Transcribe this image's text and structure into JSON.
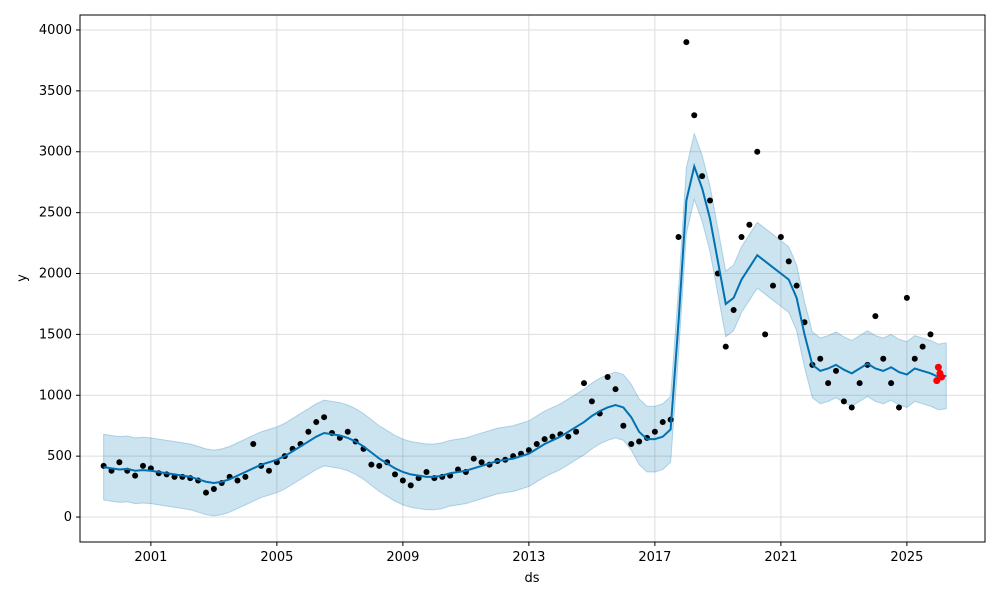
{
  "chart_data": {
    "type": "line",
    "xlabel": "ds",
    "ylabel": "y",
    "xlim": [
      1998.75,
      2027.48
    ],
    "ylim": [
      -205,
      4123
    ],
    "xticks": [
      2001,
      2005,
      2009,
      2013,
      2017,
      2021,
      2025
    ],
    "yticks": [
      0,
      500,
      1000,
      1500,
      2000,
      2500,
      3000,
      3500,
      4000
    ],
    "grid": true,
    "x": [
      1999.5,
      1999.75,
      2000,
      2000.25,
      2000.5,
      2000.75,
      2001,
      2001.25,
      2001.5,
      2001.75,
      2002,
      2002.25,
      2002.5,
      2002.75,
      2003,
      2003.25,
      2003.5,
      2003.75,
      2004,
      2004.25,
      2004.5,
      2004.75,
      2005,
      2005.25,
      2005.5,
      2005.75,
      2006,
      2006.25,
      2006.5,
      2006.75,
      2007,
      2007.25,
      2007.5,
      2007.75,
      2008,
      2008.25,
      2008.5,
      2008.75,
      2009,
      2009.25,
      2009.5,
      2009.75,
      2010,
      2010.25,
      2010.5,
      2010.75,
      2011,
      2011.25,
      2011.5,
      2011.75,
      2012,
      2012.25,
      2012.5,
      2012.75,
      2013,
      2013.25,
      2013.5,
      2013.75,
      2014,
      2014.25,
      2014.5,
      2014.75,
      2015,
      2015.25,
      2015.5,
      2015.75,
      2016,
      2016.25,
      2016.5,
      2016.75,
      2017,
      2017.25,
      2017.5,
      2017.75,
      2018,
      2018.25,
      2018.5,
      2018.75,
      2019,
      2019.25,
      2019.5,
      2019.75,
      2020,
      2020.25,
      2020.5,
      2020.75,
      2021,
      2021.25,
      2021.5,
      2021.75,
      2022,
      2022.25,
      2022.5,
      2022.75,
      2023,
      2023.25,
      2023.5,
      2023.75,
      2024,
      2024.25,
      2024.5,
      2024.75,
      2025,
      2025.25,
      2025.5,
      2025.75,
      2026,
      2026.25
    ],
    "forecast": {
      "color": "#0072b2",
      "values": [
        410,
        400,
        390,
        395,
        380,
        385,
        380,
        370,
        360,
        350,
        340,
        330,
        310,
        290,
        280,
        290,
        310,
        340,
        370,
        400,
        430,
        450,
        470,
        500,
        540,
        580,
        620,
        660,
        690,
        680,
        670,
        650,
        620,
        580,
        530,
        480,
        440,
        400,
        370,
        350,
        340,
        330,
        330,
        340,
        360,
        370,
        380,
        400,
        420,
        440,
        460,
        470,
        480,
        500,
        520,
        560,
        600,
        630,
        660,
        700,
        740,
        780,
        830,
        870,
        900,
        920,
        900,
        820,
        700,
        640,
        640,
        660,
        720,
        1600,
        2600,
        2880,
        2700,
        2450,
        2100,
        1750,
        1800,
        1950,
        2050,
        2150,
        2100,
        2050,
        2000,
        1950,
        1800,
        1500,
        1250,
        1200,
        1220,
        1250,
        1210,
        1180,
        1220,
        1260,
        1220,
        1200,
        1230,
        1190,
        1170,
        1220,
        1200,
        1180,
        1150,
        1160
      ]
    },
    "interval": {
      "color": "#0072b2",
      "lower": [
        140,
        130,
        120,
        125,
        110,
        115,
        110,
        100,
        90,
        80,
        70,
        60,
        40,
        20,
        10,
        20,
        40,
        70,
        100,
        130,
        160,
        180,
        200,
        230,
        270,
        310,
        350,
        390,
        420,
        410,
        400,
        380,
        350,
        310,
        260,
        210,
        170,
        130,
        100,
        80,
        70,
        60,
        60,
        70,
        90,
        100,
        110,
        130,
        150,
        170,
        190,
        200,
        210,
        230,
        250,
        290,
        330,
        360,
        390,
        430,
        470,
        510,
        560,
        600,
        630,
        650,
        630,
        550,
        430,
        370,
        370,
        390,
        450,
        1330,
        2330,
        2610,
        2430,
        2180,
        1830,
        1480,
        1530,
        1680,
        1780,
        1880,
        1830,
        1780,
        1730,
        1680,
        1530,
        1230,
        980,
        930,
        950,
        980,
        940,
        910,
        950,
        990,
        950,
        930,
        960,
        920,
        900,
        950,
        930,
        910,
        880,
        890
      ],
      "upper": [
        680,
        670,
        660,
        665,
        650,
        655,
        650,
        640,
        630,
        620,
        610,
        600,
        580,
        560,
        550,
        560,
        580,
        610,
        640,
        670,
        700,
        720,
        740,
        770,
        810,
        850,
        890,
        930,
        960,
        950,
        940,
        920,
        890,
        850,
        800,
        750,
        710,
        670,
        640,
        620,
        610,
        600,
        600,
        610,
        630,
        640,
        650,
        670,
        690,
        710,
        730,
        740,
        750,
        770,
        790,
        830,
        870,
        900,
        930,
        970,
        1010,
        1050,
        1100,
        1140,
        1170,
        1190,
        1170,
        1090,
        970,
        910,
        910,
        930,
        990,
        1870,
        2870,
        3150,
        2970,
        2720,
        2370,
        2020,
        2070,
        2220,
        2320,
        2420,
        2370,
        2320,
        2270,
        2220,
        2070,
        1770,
        1520,
        1470,
        1490,
        1520,
        1480,
        1450,
        1490,
        1530,
        1490,
        1470,
        1500,
        1460,
        1440,
        1490,
        1470,
        1450,
        1420,
        1430
      ]
    },
    "observed": {
      "color": "#000000",
      "x": [
        1999.5,
        1999.75,
        2000,
        2000.25,
        2000.5,
        2000.75,
        2001,
        2001.25,
        2001.5,
        2001.75,
        2002,
        2002.25,
        2002.5,
        2002.75,
        2003,
        2003.25,
        2003.5,
        2003.75,
        2004,
        2004.25,
        2004.5,
        2004.75,
        2005,
        2005.25,
        2005.5,
        2005.75,
        2006,
        2006.25,
        2006.5,
        2006.75,
        2007,
        2007.25,
        2007.5,
        2007.75,
        2008,
        2008.25,
        2008.5,
        2008.75,
        2009,
        2009.25,
        2009.5,
        2009.75,
        2010,
        2010.25,
        2010.5,
        2010.75,
        2011,
        2011.25,
        2011.5,
        2011.75,
        2012,
        2012.25,
        2012.5,
        2012.75,
        2013,
        2013.25,
        2013.5,
        2013.75,
        2014,
        2014.25,
        2014.5,
        2014.75,
        2015,
        2015.25,
        2015.5,
        2015.75,
        2016,
        2016.25,
        2016.5,
        2016.75,
        2017,
        2017.25,
        2017.5,
        2017.75,
        2018,
        2018.25,
        2018.5,
        2018.75,
        2019,
        2019.25,
        2019.5,
        2019.75,
        2020,
        2020.25,
        2020.5,
        2020.75,
        2021,
        2021.25,
        2021.5,
        2021.75,
        2022,
        2022.25,
        2022.5,
        2022.75,
        2023,
        2023.25,
        2023.5,
        2023.75,
        2024,
        2024.25,
        2024.5,
        2024.75,
        2025,
        2025.25,
        2025.5,
        2025.75
      ],
      "values": [
        420,
        380,
        450,
        380,
        340,
        420,
        400,
        360,
        350,
        330,
        330,
        320,
        300,
        200,
        230,
        280,
        330,
        300,
        330,
        600,
        420,
        380,
        450,
        500,
        560,
        600,
        700,
        780,
        820,
        690,
        650,
        700,
        620,
        560,
        430,
        420,
        450,
        350,
        300,
        260,
        320,
        370,
        320,
        330,
        340,
        390,
        370,
        480,
        450,
        430,
        460,
        470,
        500,
        520,
        550,
        600,
        640,
        660,
        680,
        660,
        700,
        1100,
        950,
        850,
        1150,
        1050,
        750,
        600,
        620,
        650,
        700,
        780,
        800,
        2300,
        3900,
        3300,
        2800,
        2600,
        2000,
        1400,
        1700,
        2300,
        2400,
        3000,
        1500,
        1900,
        2300,
        2100,
        1900,
        1600,
        1250,
        1300,
        1100,
        1200,
        950,
        900,
        1100,
        1250,
        1650,
        1300,
        1100,
        900,
        1800,
        1300,
        1400,
        1500
      ]
    },
    "future_observed": {
      "color": "#ff0000",
      "x": [
        2025.95,
        2026.0,
        2026.05,
        2026.1
      ],
      "values": [
        1120,
        1230,
        1180,
        1150
      ]
    }
  }
}
